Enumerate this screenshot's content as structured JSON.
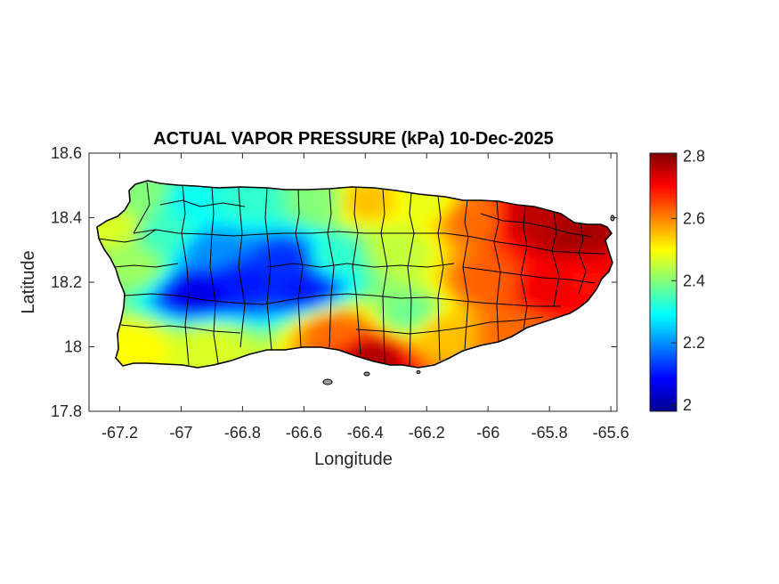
{
  "chart_data": {
    "type": "heatmap",
    "title": "ACTUAL VAPOR PRESSURE (kPa) 10-Dec-2025",
    "xlabel": "Longitude",
    "ylabel": "Latitude",
    "xlim": [
      -67.3,
      -65.58
    ],
    "ylim": [
      17.8,
      18.6
    ],
    "xticks": [
      -67.2,
      -67,
      -66.8,
      -66.6,
      -66.4,
      -66.2,
      -66,
      -65.8,
      -65.6
    ],
    "xtick_labels": [
      "-67.2",
      "-67",
      "-66.8",
      "-66.6",
      "-66.4",
      "-66.2",
      "-66",
      "-65.8",
      "-65.6"
    ],
    "yticks": [
      17.8,
      18,
      18.2,
      18.4,
      18.6
    ],
    "ytick_labels": [
      "17.8",
      "18",
      "18.2",
      "18.4",
      "18.6"
    ],
    "colorbar": {
      "range": [
        1.98,
        2.81
      ],
      "ticks": [
        2,
        2.2,
        2.4,
        2.6,
        2.8
      ],
      "tick_labels": [
        "2",
        "2.2",
        "2.4",
        "2.6",
        "2.8"
      ],
      "colormap": "jet"
    },
    "field_samples": [
      {
        "lon": -67.22,
        "lat": 18.37,
        "value": 2.47
      },
      {
        "lon": -67.12,
        "lat": 18.47,
        "value": 2.4
      },
      {
        "lon": -67.15,
        "lat": 18.25,
        "value": 2.42
      },
      {
        "lon": -67.15,
        "lat": 18.0,
        "value": 2.5
      },
      {
        "lon": -67.05,
        "lat": 18.35,
        "value": 2.34
      },
      {
        "lon": -66.98,
        "lat": 18.45,
        "value": 2.3
      },
      {
        "lon": -66.95,
        "lat": 18.17,
        "value": 2.06
      },
      {
        "lon": -66.9,
        "lat": 18.3,
        "value": 2.2
      },
      {
        "lon": -66.9,
        "lat": 18.0,
        "value": 2.47
      },
      {
        "lon": -66.8,
        "lat": 18.2,
        "value": 2.1
      },
      {
        "lon": -66.78,
        "lat": 18.45,
        "value": 2.33
      },
      {
        "lon": -66.65,
        "lat": 18.27,
        "value": 2.12
      },
      {
        "lon": -66.6,
        "lat": 18.18,
        "value": 2.1
      },
      {
        "lon": -66.55,
        "lat": 18.45,
        "value": 2.4
      },
      {
        "lon": -66.5,
        "lat": 18.28,
        "value": 2.33
      },
      {
        "lon": -66.5,
        "lat": 18.05,
        "value": 2.62
      },
      {
        "lon": -66.4,
        "lat": 18.45,
        "value": 2.55
      },
      {
        "lon": -66.38,
        "lat": 17.97,
        "value": 2.77
      },
      {
        "lon": -66.3,
        "lat": 18.3,
        "value": 2.45
      },
      {
        "lon": -66.25,
        "lat": 18.1,
        "value": 2.38
      },
      {
        "lon": -66.2,
        "lat": 18.45,
        "value": 2.48
      },
      {
        "lon": -66.15,
        "lat": 18.05,
        "value": 2.55
      },
      {
        "lon": -66.05,
        "lat": 18.4,
        "value": 2.62
      },
      {
        "lon": -66.0,
        "lat": 18.2,
        "value": 2.63
      },
      {
        "lon": -65.92,
        "lat": 18.05,
        "value": 2.62
      },
      {
        "lon": -65.85,
        "lat": 18.4,
        "value": 2.76
      },
      {
        "lon": -65.8,
        "lat": 18.18,
        "value": 2.72
      },
      {
        "lon": -65.72,
        "lat": 18.35,
        "value": 2.78
      },
      {
        "lon": -65.68,
        "lat": 18.2,
        "value": 2.7
      }
    ]
  }
}
